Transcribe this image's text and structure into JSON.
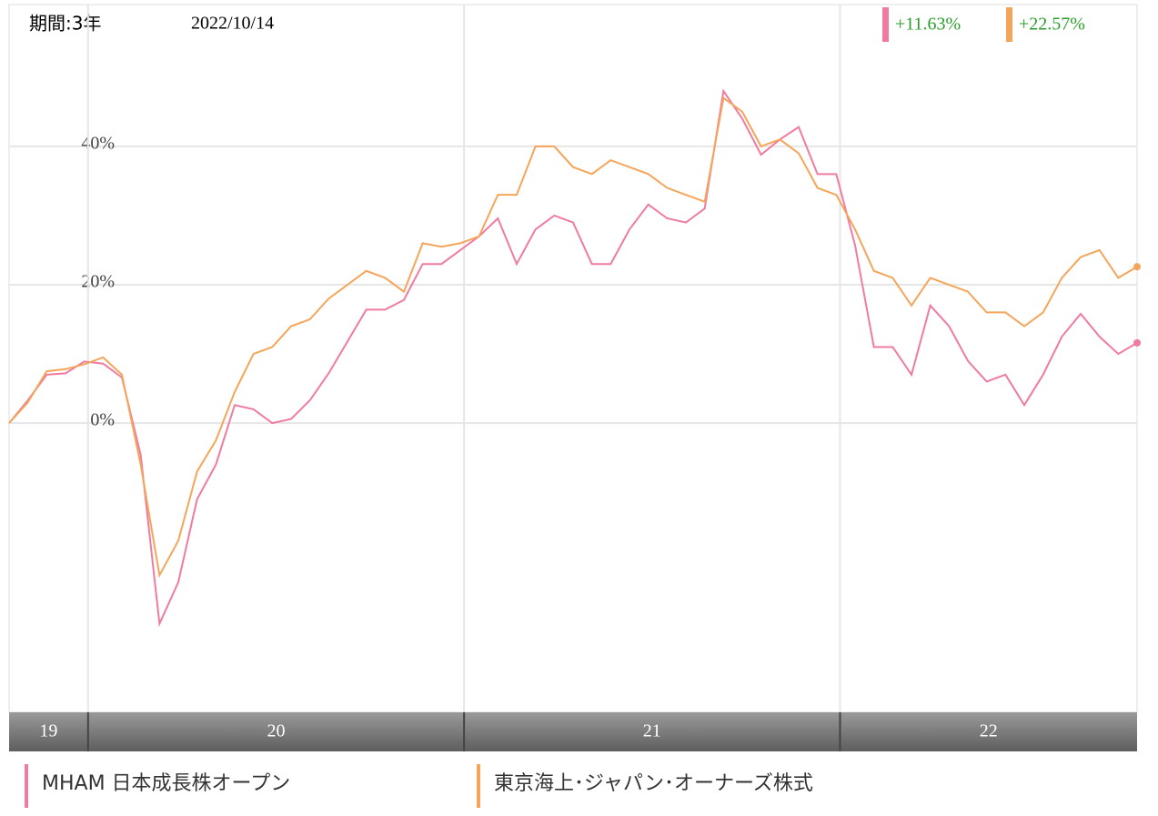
{
  "chart_data": {
    "type": "line",
    "period": "期間:3年",
    "date": "2022/10/14",
    "x": [
      2019.79,
      2019.84,
      2019.89,
      2019.94,
      2019.99,
      2020.04,
      2020.09,
      2020.14,
      2020.19,
      2020.24,
      2020.29,
      2020.34,
      2020.39,
      2020.44,
      2020.49,
      2020.54,
      2020.59,
      2020.64,
      2020.69,
      2020.74,
      2020.79,
      2020.84,
      2020.89,
      2020.94,
      2020.99,
      2021.04,
      2021.09,
      2021.14,
      2021.19,
      2021.24,
      2021.29,
      2021.34,
      2021.39,
      2021.44,
      2021.49,
      2021.54,
      2021.59,
      2021.64,
      2021.69,
      2021.74,
      2021.79,
      2021.84,
      2021.89,
      2021.94,
      2021.99,
      2022.04,
      2022.09,
      2022.14,
      2022.19,
      2022.24,
      2022.29,
      2022.34,
      2022.39,
      2022.44,
      2022.49,
      2022.54,
      2022.59,
      2022.64,
      2022.69,
      2022.74,
      2022.79
    ],
    "series": [
      {
        "name": "MHAM 日本成長株オープン",
        "color": "#f07ba0",
        "return_label": "+11.63%",
        "values": [
          0,
          3.3,
          7,
          7.2,
          8.9,
          8.6,
          6.6,
          -4.6,
          -29,
          -23,
          -11,
          -6,
          2.6,
          2,
          0,
          0.6,
          3.3,
          7.2,
          11.8,
          16.4,
          16.4,
          17.8,
          23,
          23,
          25,
          27,
          29.6,
          23,
          28,
          30,
          29,
          23,
          23,
          28,
          31.6,
          29.6,
          29,
          31,
          48,
          44,
          38.8,
          41,
          42.8,
          36,
          36,
          25.7,
          11,
          11,
          7,
          17,
          14,
          9,
          6,
          7,
          2.6,
          7,
          12.5,
          15.8,
          12.5,
          10,
          11.6
        ]
      },
      {
        "name": "東京海上･ジャパン･オーナーズ株式",
        "color": "#f5a55a",
        "return_label": "+22.57%",
        "values": [
          0,
          3,
          7.5,
          7.8,
          8.5,
          9.5,
          7,
          -6,
          -22,
          -17,
          -7,
          -2.5,
          4.5,
          10,
          11,
          14,
          15,
          18,
          20,
          22,
          21,
          19,
          26,
          25.5,
          26,
          27,
          33,
          33,
          40,
          40,
          37,
          36,
          38,
          37,
          36,
          34,
          33,
          32,
          47,
          45,
          40,
          41,
          39,
          34,
          33,
          28,
          22,
          21,
          17,
          21,
          20,
          19,
          16,
          16,
          14,
          16,
          21,
          24,
          25,
          21,
          22.6
        ]
      }
    ],
    "xlim": [
      2019.79,
      2022.79
    ],
    "xticks": [
      {
        "value": 2019,
        "label": "19"
      },
      {
        "value": 2020,
        "label": "20"
      },
      {
        "value": 2021,
        "label": "21"
      },
      {
        "value": 2022,
        "label": "22"
      }
    ],
    "ylim": [
      -41.8,
      60.5
    ],
    "yticks": [
      {
        "value": 0,
        "label": "0%"
      },
      {
        "value": 20,
        "label": "20%"
      },
      {
        "value": 40,
        "label": "40%"
      }
    ],
    "grid": true
  }
}
